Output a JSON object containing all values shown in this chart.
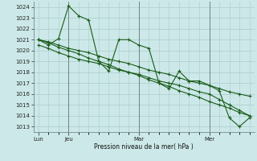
{
  "background_color": "#cce8e8",
  "grid_color": "#aacccc",
  "line_color": "#1a5c1a",
  "xlabel": "Pression niveau de la mer( hPa )",
  "ylim": [
    1012.5,
    1024.5
  ],
  "yticks": [
    1013,
    1014,
    1015,
    1016,
    1017,
    1018,
    1019,
    1020,
    1021,
    1022,
    1023,
    1024
  ],
  "series": [
    [
      1021.0,
      1020.5,
      1021.1,
      1024.1,
      1023.2,
      1022.8,
      1019.0,
      1018.1,
      1021.0,
      1021.0,
      1020.5,
      1020.2,
      1017.0,
      1016.5,
      1018.1,
      1017.2,
      1017.2,
      1016.8,
      1016.3,
      1013.8,
      1013.0,
      1013.8
    ],
    [
      1020.5,
      1020.2,
      1019.8,
      1019.5,
      1019.2,
      1019.0,
      1018.8,
      1018.5,
      1018.2,
      1018.0,
      1017.8,
      1017.5,
      1017.2,
      1017.0,
      1016.8,
      1016.5,
      1016.2,
      1016.0,
      1015.5,
      1015.0,
      1014.5,
      1014.0
    ],
    [
      1021.0,
      1020.8,
      1020.5,
      1020.2,
      1020.0,
      1019.8,
      1019.5,
      1019.2,
      1019.0,
      1018.8,
      1018.5,
      1018.2,
      1018.0,
      1017.8,
      1017.5,
      1017.2,
      1017.0,
      1016.8,
      1016.5,
      1016.2,
      1016.0,
      1015.8
    ],
    [
      1021.0,
      1020.7,
      1020.3,
      1020.0,
      1019.7,
      1019.3,
      1019.0,
      1018.7,
      1018.3,
      1018.0,
      1017.7,
      1017.3,
      1017.0,
      1016.7,
      1016.3,
      1016.0,
      1015.7,
      1015.3,
      1015.0,
      1014.7,
      1014.3,
      1014.0
    ]
  ],
  "n_points": 22,
  "xlim": [
    0,
    21
  ],
  "lun_x": 0,
  "jeu_x": 3,
  "mar_x": 10,
  "mer_x": 17
}
